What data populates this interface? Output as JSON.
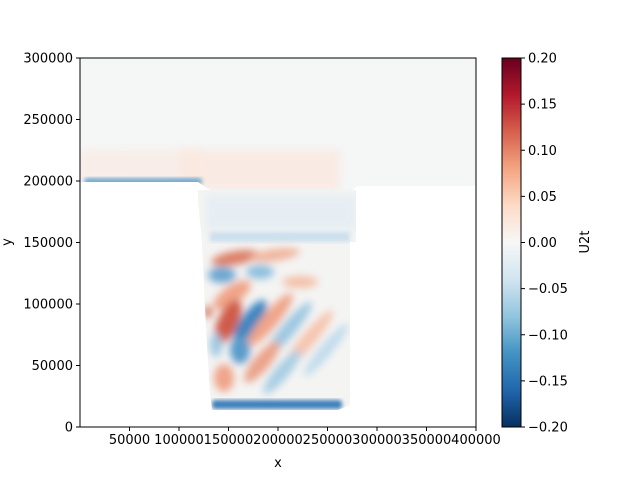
{
  "chart_data": {
    "type": "heatmap",
    "title": "",
    "xlabel": "x",
    "ylabel": "y",
    "xlim": [
      0,
      400000
    ],
    "ylim": [
      0,
      300000
    ],
    "x_ticks": [
      {
        "value": 50000,
        "label": "50000"
      },
      {
        "value": 100000,
        "label": "100000"
      },
      {
        "value": 150000,
        "label": "150000"
      },
      {
        "value": 200000,
        "label": "200000"
      },
      {
        "value": 250000,
        "label": "250000"
      },
      {
        "value": 300000,
        "label": "300000"
      },
      {
        "value": 350000,
        "label": "350000"
      },
      {
        "value": 400000,
        "label": "400000"
      }
    ],
    "y_ticks": [
      {
        "value": 0,
        "label": "0"
      },
      {
        "value": 50000,
        "label": "50000"
      },
      {
        "value": 100000,
        "label": "100000"
      },
      {
        "value": 150000,
        "label": "150000"
      },
      {
        "value": 200000,
        "label": "200000"
      },
      {
        "value": 250000,
        "label": "250000"
      },
      {
        "value": 300000,
        "label": "300000"
      }
    ],
    "colorbar": {
      "label": "U2t",
      "colormap": "RdBu_r",
      "range": [
        -0.2,
        0.2
      ],
      "ticks": [
        {
          "value": 0.2,
          "label": "0.20"
        },
        {
          "value": 0.15,
          "label": "0.15"
        },
        {
          "value": 0.1,
          "label": "0.10"
        },
        {
          "value": 0.05,
          "label": "0.05"
        },
        {
          "value": 0.0,
          "label": "0.00"
        },
        {
          "value": -0.05,
          "label": "−0.05"
        },
        {
          "value": -0.1,
          "label": "−0.10"
        },
        {
          "value": -0.15,
          "label": "−0.15"
        },
        {
          "value": -0.2,
          "label": "−0.20"
        }
      ],
      "stops": [
        "#053061",
        "#2166ac",
        "#4393c3",
        "#92c5de",
        "#d1e5f0",
        "#f7f7f7",
        "#fddbc7",
        "#f4a582",
        "#d6604d",
        "#b2182b",
        "#67001f"
      ]
    },
    "grid": false,
    "legend": "none"
  }
}
